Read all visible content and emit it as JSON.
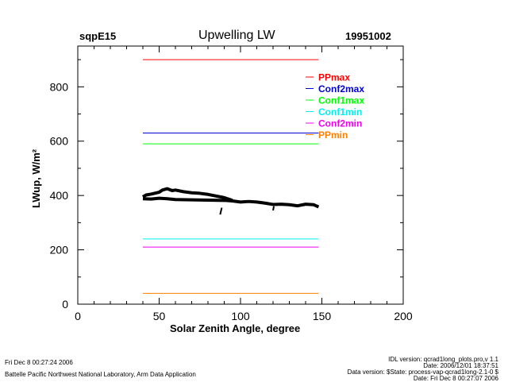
{
  "header": {
    "site": "sqpE15",
    "date": "19951002"
  },
  "chart_data": {
    "type": "line",
    "title": "Upwelling LW",
    "xlabel": "Solar Zenith Angle, degree",
    "ylabel": "LWup, W/m²",
    "xlim": [
      0,
      200
    ],
    "ylim": [
      0,
      950
    ],
    "xticks": [
      0,
      50,
      100,
      150,
      200
    ],
    "yticks": [
      0,
      200,
      400,
      600,
      800
    ],
    "xtick_labels": [
      "0",
      "50",
      "100",
      "150",
      "200"
    ],
    "ytick_labels": [
      "0",
      "200",
      "400",
      "600",
      "800"
    ],
    "legend_position": "top-right",
    "limits": [
      {
        "name": "PPmax",
        "value": 900,
        "color": "#ff0000"
      },
      {
        "name": "Conf2max",
        "value": 630,
        "color": "#0000cc"
      },
      {
        "name": "Conf1max",
        "value": 590,
        "color": "#00ff00"
      },
      {
        "name": "Conf1min",
        "value": 240,
        "color": "#00eeee"
      },
      {
        "name": "Conf2min",
        "value": 210,
        "color": "#ee00ee"
      },
      {
        "name": "PPmin",
        "value": 40,
        "color": "#ff8000"
      }
    ],
    "limit_x_range": [
      40,
      148
    ],
    "series": [
      {
        "name": "upper",
        "color": "#000000",
        "x": [
          40,
          42,
          45,
          50,
          52,
          55,
          58,
          60,
          65,
          70,
          75,
          80,
          85,
          90,
          95
        ],
        "y": [
          395,
          402,
          405,
          412,
          420,
          425,
          418,
          420,
          414,
          410,
          408,
          404,
          398,
          392,
          382
        ]
      },
      {
        "name": "lower",
        "color": "#000000",
        "x": [
          40,
          45,
          50,
          55,
          60,
          70,
          80,
          90,
          95,
          100,
          105,
          110,
          115,
          120,
          125,
          130,
          135,
          140,
          145,
          148
        ],
        "y": [
          388,
          387,
          390,
          388,
          385,
          384,
          383,
          382,
          380,
          376,
          378,
          376,
          372,
          367,
          368,
          366,
          362,
          368,
          366,
          358
        ]
      },
      {
        "name": "dip1",
        "color": "#000000",
        "x": [
          87.5,
          88.5
        ],
        "y": [
          330,
          355
        ]
      },
      {
        "name": "dip2",
        "color": "#000000",
        "x": [
          120,
          120.5
        ],
        "y": [
          345,
          360
        ]
      }
    ]
  },
  "footer": {
    "left_date": "Fri Dec  8 00:27:24 2006",
    "left_org": "Battelle Pacific Northwest National Laboratory, Arm Data Application",
    "right_1": "IDL version: qcrad1long_plots.pro,v 1.1",
    "right_2": "Date: 2006/12/01 18:37:51",
    "right_3": "Data version: $State: process-vap-qcrad1long-2.1-0 $",
    "right_4": "Date: Fri Dec  8 00:27:07 2006"
  }
}
